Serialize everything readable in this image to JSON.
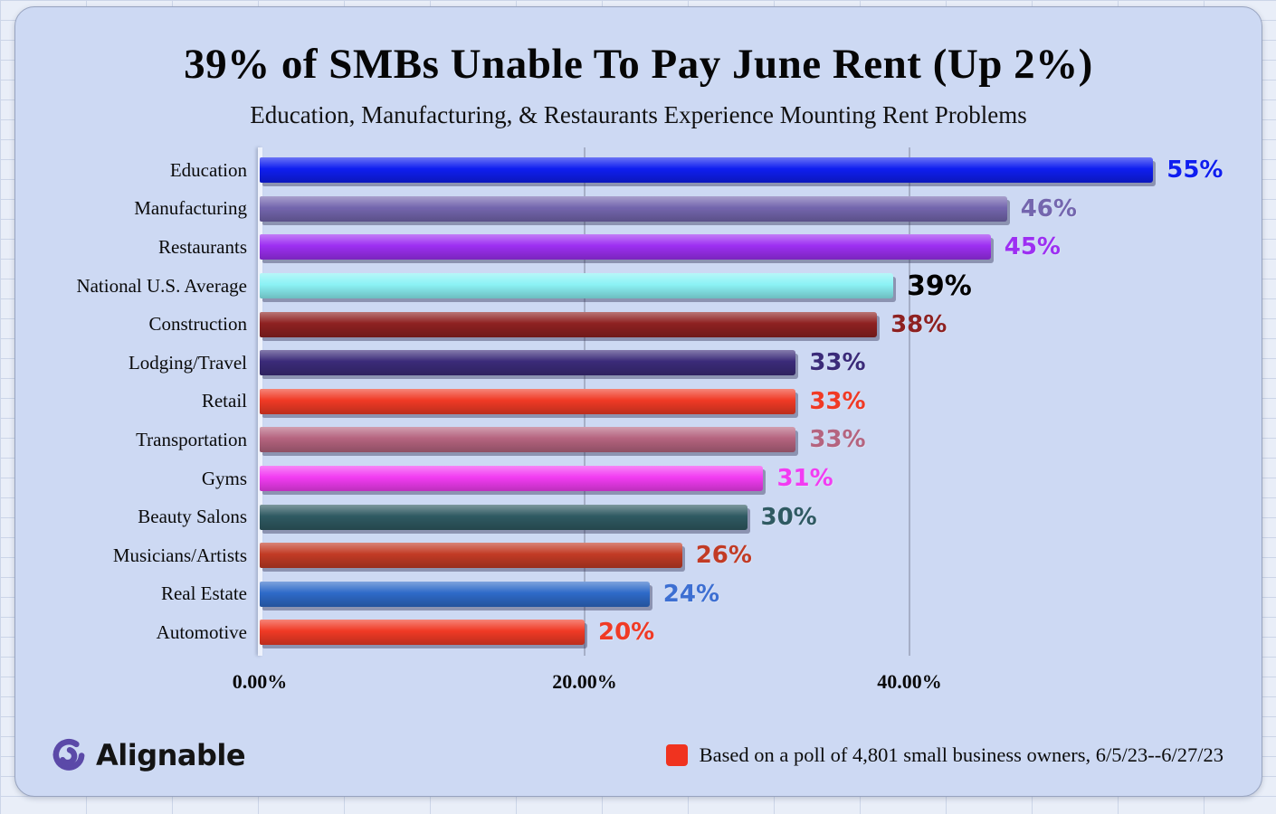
{
  "title": "39% of SMBs Unable To Pay June Rent (Up 2%)",
  "subtitle": "Education, Manufacturing, & Restaurants Experience Mounting Rent Problems",
  "chart_data": {
    "type": "bar",
    "orientation": "horizontal",
    "title": "39% of SMBs Unable To Pay June Rent (Up 2%)",
    "subtitle": "Education, Manufacturing, & Restaurants Experience Mounting Rent Problems",
    "x_axis": {
      "max": 60,
      "ticks": [
        {
          "value": 0,
          "label": "0.00%"
        },
        {
          "value": 20,
          "label": "20.00%"
        },
        {
          "value": 40,
          "label": "40.00%"
        }
      ],
      "gridlines": [
        20,
        40
      ]
    },
    "rows": [
      {
        "category": "Education",
        "value": 55,
        "value_label": "55%",
        "bar_color": "#0f1ef0",
        "label_color": "#0f1ef0",
        "emphasis": false
      },
      {
        "category": "Manufacturing",
        "value": 46,
        "value_label": "46%",
        "bar_color": "#7466ae",
        "label_color": "#7466ae",
        "emphasis": false
      },
      {
        "category": "Restaurants",
        "value": 45,
        "value_label": "45%",
        "bar_color": "#9d2ff2",
        "label_color": "#9d2ff2",
        "emphasis": false
      },
      {
        "category": "National U.S. Average",
        "value": 39,
        "value_label": "39%",
        "bar_color": "#8bf2f5",
        "label_color": "#000000",
        "emphasis": true
      },
      {
        "category": "Construction",
        "value": 38,
        "value_label": "38%",
        "bar_color": "#8e2121",
        "label_color": "#8e2121",
        "emphasis": false
      },
      {
        "category": "Lodging/Travel",
        "value": 33,
        "value_label": "33%",
        "bar_color": "#3b2b79",
        "label_color": "#3b2b79",
        "emphasis": false
      },
      {
        "category": "Retail",
        "value": 33,
        "value_label": "33%",
        "bar_color": "#f03a25",
        "label_color": "#f03a25",
        "emphasis": false
      },
      {
        "category": "Transportation",
        "value": 33,
        "value_label": "33%",
        "bar_color": "#b5647f",
        "label_color": "#b5647f",
        "emphasis": false
      },
      {
        "category": "Gyms",
        "value": 31,
        "value_label": "31%",
        "bar_color": "#f23cf2",
        "label_color": "#f23cf2",
        "emphasis": false
      },
      {
        "category": "Beauty Salons",
        "value": 30,
        "value_label": "30%",
        "bar_color": "#2f5a62",
        "label_color": "#2f5a62",
        "emphasis": false
      },
      {
        "category": "Musicians/Artists",
        "value": 26,
        "value_label": "26%",
        "bar_color": "#c23b25",
        "label_color": "#c23b25",
        "emphasis": false
      },
      {
        "category": "Real Estate",
        "value": 24,
        "value_label": "24%",
        "bar_color": "#2e6ac8",
        "label_color": "#3d6fd2",
        "emphasis": false
      },
      {
        "category": "Automotive",
        "value": 20,
        "value_label": "20%",
        "bar_color": "#f03a25",
        "label_color": "#f03a25",
        "emphasis": false
      }
    ]
  },
  "footer": {
    "brand": "Alignable",
    "brand_color": "#5b49a8",
    "legend_text": "Based on a poll of 4,801 small business owners, 6/5/23--6/27/23",
    "legend_color": "#f0331f"
  }
}
